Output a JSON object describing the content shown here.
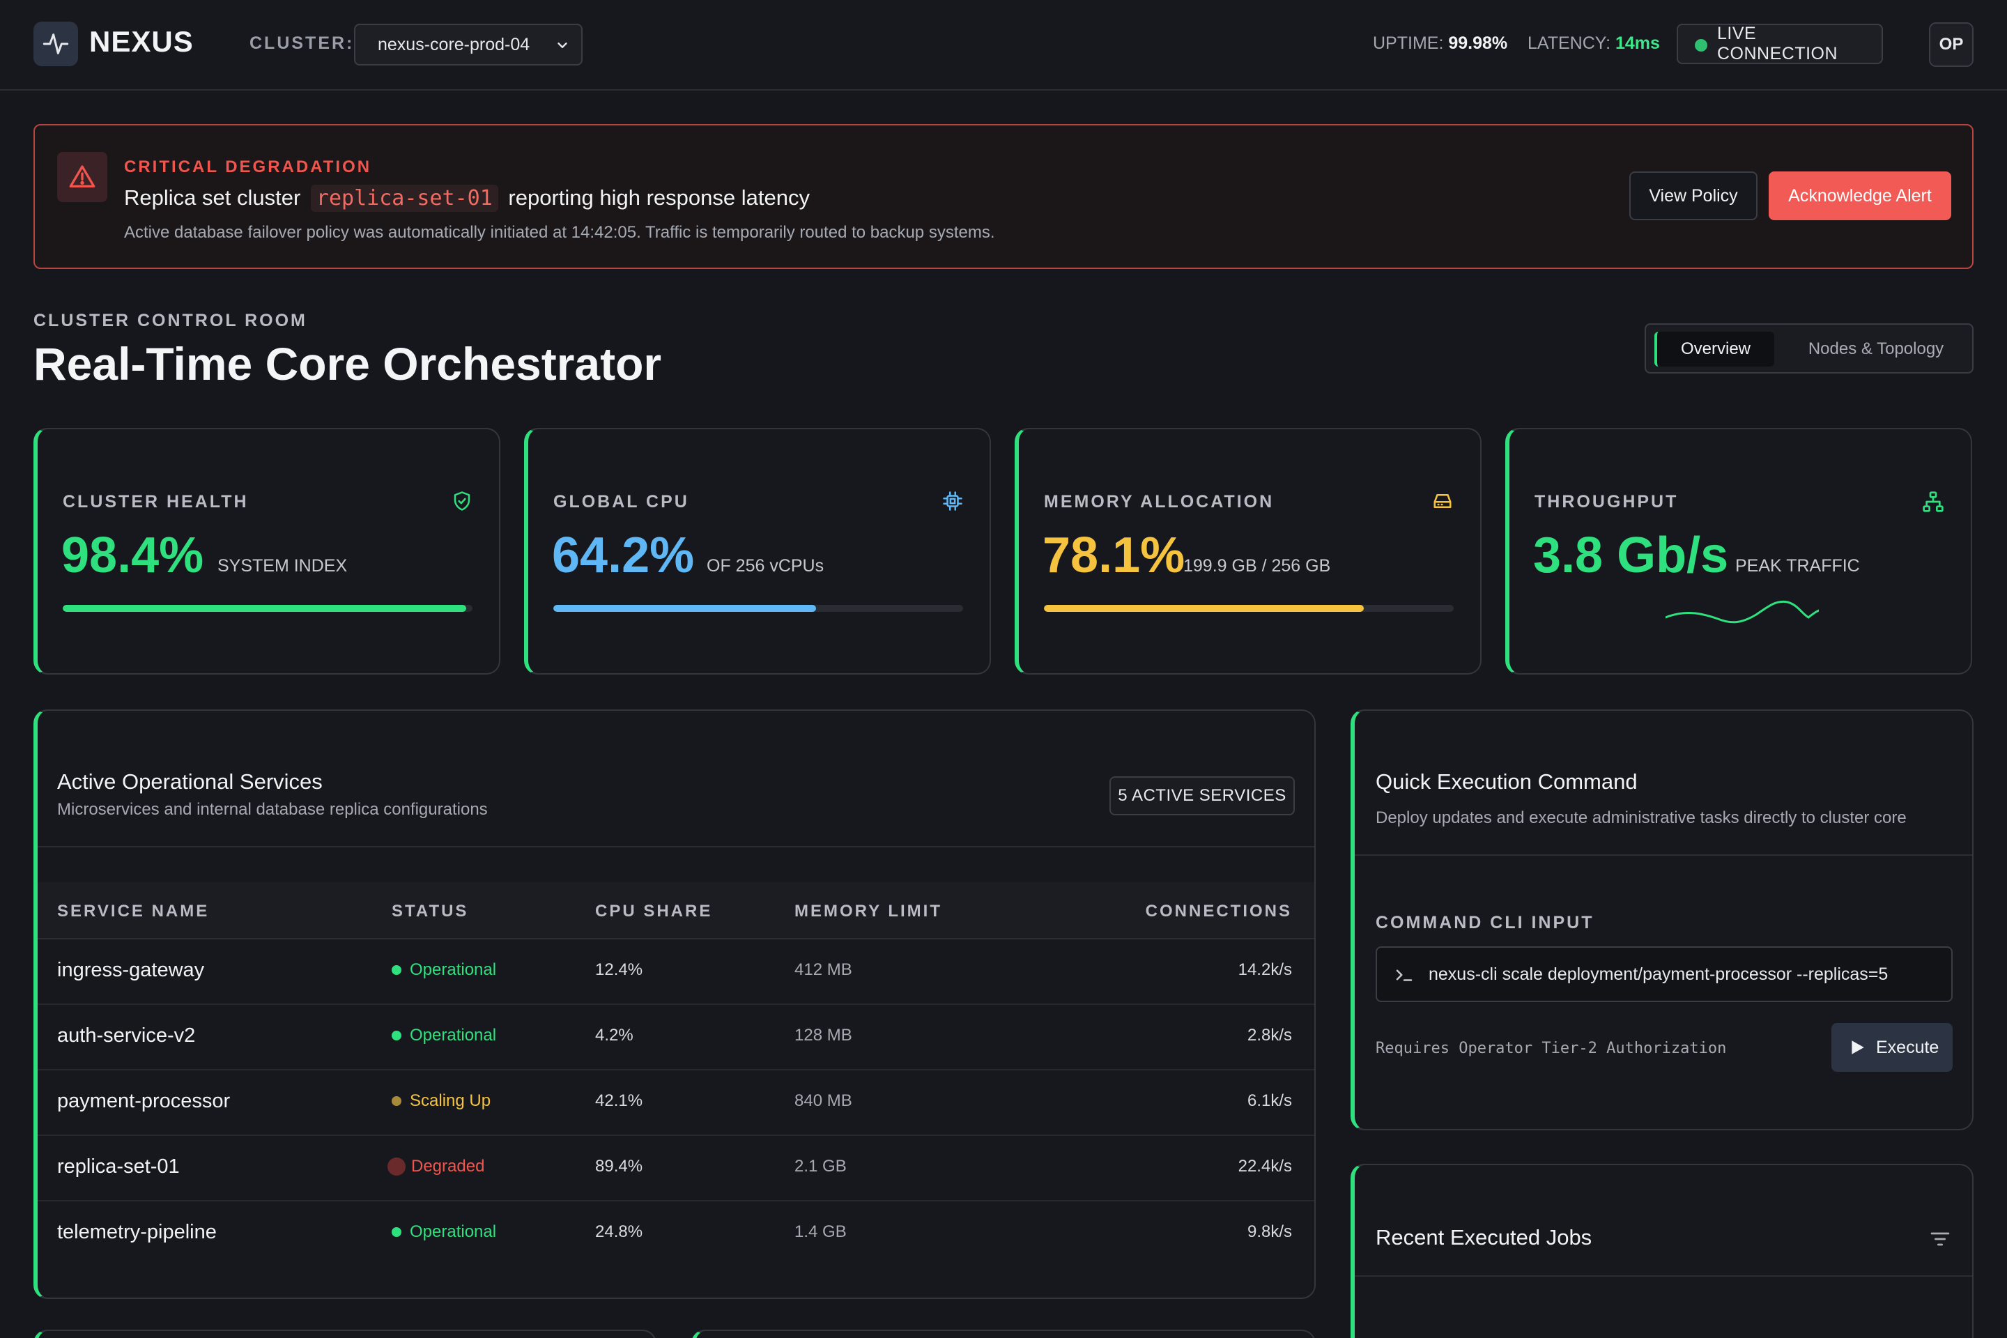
{
  "header": {
    "brand": "NEXUS",
    "cluster_label": "CLUSTER:",
    "cluster_selected": "nexus-core-prod-04",
    "uptime_label": "UPTIME:",
    "uptime_value": "99.98%",
    "latency_label": "LATENCY:",
    "latency_value": "14ms",
    "connection_status": "LIVE CONNECTION",
    "avatar_initials": "OP"
  },
  "alert": {
    "kicker": "CRITICAL DEGRADATION",
    "title_prefix": "Replica set cluster",
    "title_code": "replica-set-01",
    "title_suffix": "reporting high response latency",
    "description": "Active database failover policy was automatically initiated at 14:42:05. Traffic is temporarily routed to backup systems.",
    "view_policy_label": "View Policy",
    "acknowledge_label": "Acknowledge Alert"
  },
  "page": {
    "kicker": "CLUSTER CONTROL ROOM",
    "title": "Real-Time Core Orchestrator",
    "tabs": [
      {
        "label": "Overview",
        "active": true
      },
      {
        "label": "Nodes & Topology",
        "active": false
      }
    ]
  },
  "stats": [
    {
      "label": "CLUSTER HEALTH",
      "value": "98.4%",
      "sub": "SYSTEM INDEX",
      "progress": 0.984,
      "color": "#2fe07f",
      "icon": "shield-check-icon"
    },
    {
      "label": "GLOBAL CPU",
      "value": "64.2%",
      "sub": "OF 256 vCPUs",
      "progress": 0.642,
      "color": "#5fb8f5",
      "icon": "cpu-chip-icon"
    },
    {
      "label": "MEMORY ALLOCATION",
      "value": "78.1%",
      "sub": "199.9 GB / 256 GB",
      "progress": 0.781,
      "color": "#f6c33f",
      "icon": "hard-drive-icon"
    },
    {
      "label": "THROUGHPUT",
      "value": "3.8 Gb/s",
      "sub": "PEAK TRAFFIC",
      "color": "#2fe07f",
      "icon": "network-icon"
    }
  ],
  "services": {
    "title": "Active Operational Services",
    "subtitle": "Microservices and internal database replica configurations",
    "count_label": "5 ACTIVE SERVICES",
    "columns": [
      "SERVICE NAME",
      "STATUS",
      "CPU SHARE",
      "MEMORY LIMIT",
      "CONNECTIONS"
    ],
    "rows": [
      {
        "name": "ingress-gateway",
        "status": "Operational",
        "status_color": "#2fe07f",
        "cpu": "12.4%",
        "memory": "412 MB",
        "connections": "14.2k/s"
      },
      {
        "name": "auth-service-v2",
        "status": "Operational",
        "status_color": "#2fe07f",
        "cpu": "4.2%",
        "memory": "128 MB",
        "connections": "2.8k/s"
      },
      {
        "name": "payment-processor",
        "status": "Scaling Up",
        "status_color": "#f6c33f",
        "cpu": "42.1%",
        "memory": "840 MB",
        "connections": "6.1k/s"
      },
      {
        "name": "replica-set-01",
        "status": "Degraded",
        "status_color": "#f0564e",
        "cpu": "89.4%",
        "memory": "2.1 GB",
        "connections": "22.4k/s"
      },
      {
        "name": "telemetry-pipeline",
        "status": "Operational",
        "status_color": "#2fe07f",
        "cpu": "24.8%",
        "memory": "1.4 GB",
        "connections": "9.8k/s"
      }
    ]
  },
  "exec": {
    "title": "Quick Execution Command",
    "subtitle": "Deploy updates and execute administrative tasks directly to cluster core",
    "cli_label": "COMMAND CLI INPUT",
    "cli_value": "nexus-cli scale deployment/payment-processor --replicas=5",
    "auth_note": "Requires Operator Tier-2 Authorization",
    "execute_label": "Execute"
  },
  "jobs": {
    "title": "Recent Executed Jobs"
  }
}
